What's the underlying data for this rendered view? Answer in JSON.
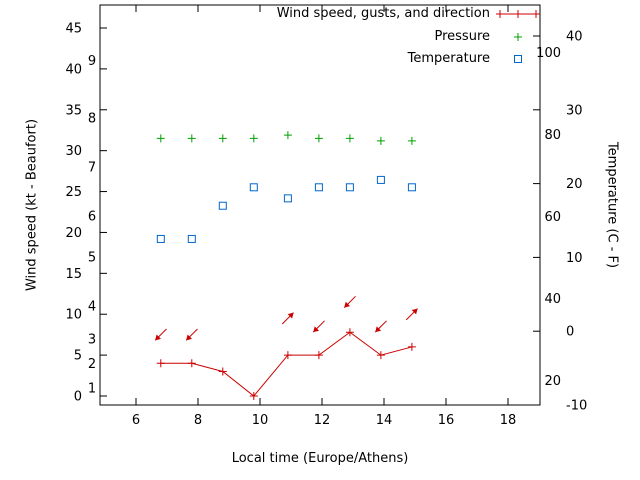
{
  "chart_data": {
    "type": "line",
    "title": "",
    "xlabel": "Local time (Europe/Athens)",
    "ylabel_left": "Wind speed (kt - Beaufort)",
    "ylabel_right": "Temperature (C - F)",
    "x_axis": {
      "unit": "hour",
      "range": [
        4.8,
        19.0
      ],
      "ticks": [
        6,
        8,
        10,
        12,
        14,
        16,
        18
      ]
    },
    "y_left_axis": {
      "unit": "kt",
      "range": [
        -1.1,
        47.8
      ],
      "ticks": [
        0,
        5,
        10,
        15,
        20,
        25,
        30,
        35,
        40,
        45
      ]
    },
    "beaufort_scale": {
      "labels": [
        "1",
        "2",
        "3",
        "4",
        "5",
        "6",
        "7",
        "8",
        "9"
      ],
      "kt_positions": [
        1,
        4,
        7,
        11,
        17,
        22,
        28,
        34,
        41
      ]
    },
    "y_right_axis": {
      "unit": "C",
      "range": [
        -10.8,
        44.2
      ],
      "ticks": [
        -10,
        0,
        10,
        20,
        30,
        40
      ]
    },
    "fahrenheit_scale": {
      "labels": [
        "20",
        "40",
        "60",
        "80",
        "100"
      ],
      "f_values": [
        20,
        40,
        60,
        80,
        100
      ]
    },
    "x_hours": [
      6.8,
      7.8,
      8.8,
      9.8,
      10.9,
      11.9,
      12.9,
      13.9,
      14.9
    ],
    "series": [
      {
        "name": "Wind speed, gusts, and direction",
        "style": "linespoints",
        "marker": "plus",
        "color": "#cc0000",
        "axis": "left_kt",
        "values": [
          4,
          4,
          3,
          0,
          5,
          5,
          7.8,
          5,
          6
        ]
      },
      {
        "name": "Pressure",
        "style": "points",
        "marker": "plus",
        "color": "#00a000",
        "axis": "left_kt_plotted_level",
        "values": [
          31.5,
          31.5,
          31.5,
          31.5,
          31.9,
          31.5,
          31.5,
          31.2,
          31.2
        ]
      },
      {
        "name": "Temperature",
        "style": "points",
        "marker": "open-square",
        "color": "#0066cc",
        "axis": "right_c",
        "values": [
          12.5,
          12.5,
          17,
          19.5,
          18,
          19.5,
          19.5,
          20.5,
          19.5
        ]
      }
    ],
    "wind_arrows": [
      {
        "x": 6.8,
        "kt": 7.5,
        "dir_deg_screen": 135
      },
      {
        "x": 7.8,
        "kt": 7.5,
        "dir_deg_screen": 135
      },
      {
        "x": 10.9,
        "kt": 9.5,
        "dir_deg_screen": 315
      },
      {
        "x": 11.9,
        "kt": 8.5,
        "dir_deg_screen": 135
      },
      {
        "x": 12.9,
        "kt": 11.5,
        "dir_deg_screen": 135
      },
      {
        "x": 13.9,
        "kt": 8.5,
        "dir_deg_screen": 135
      },
      {
        "x": 14.9,
        "kt": 10,
        "dir_deg_screen": 315
      }
    ],
    "legend_position": "top-right-inside",
    "grid": false
  }
}
